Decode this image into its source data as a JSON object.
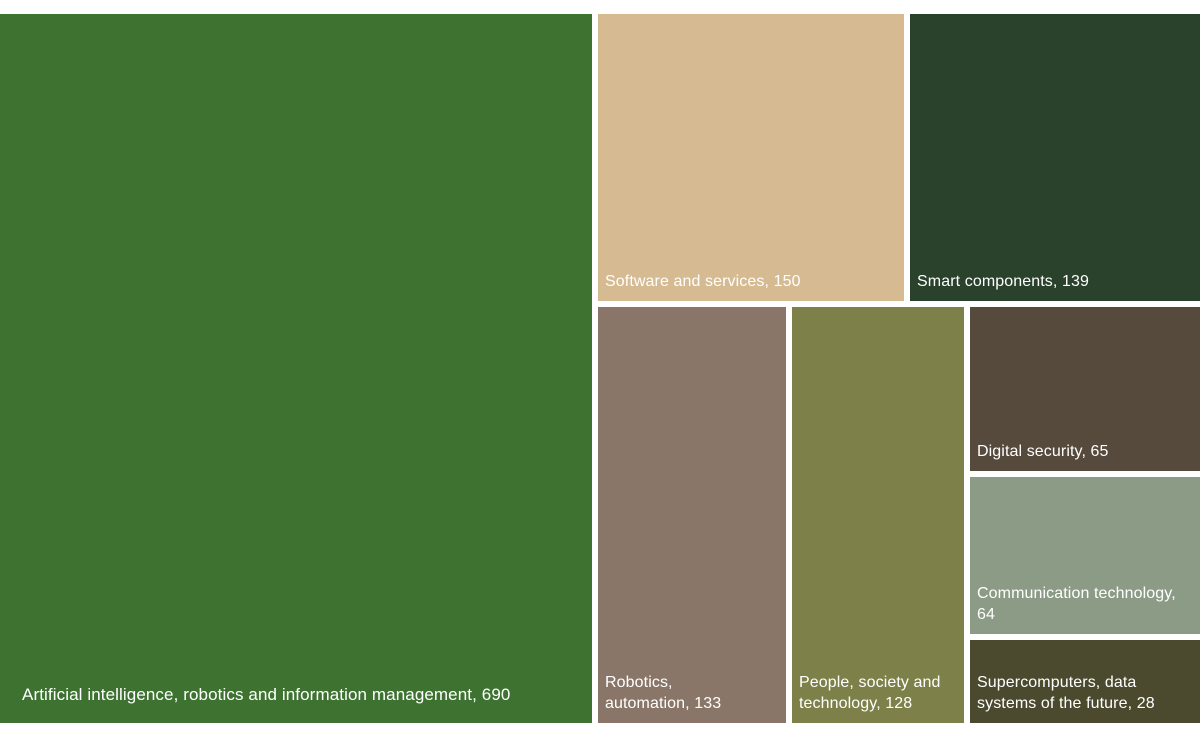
{
  "chart_data": {
    "type": "treemap",
    "title": "",
    "legend": "none",
    "items": [
      {
        "label": "Artificial intelligence, robotics and information management",
        "value": 690,
        "color": "#3d7230"
      },
      {
        "label": "Software and services",
        "value": 150,
        "color": "#d5ba92"
      },
      {
        "label": "Smart components",
        "value": 139,
        "color": "#2a412c"
      },
      {
        "label": "Robotics, automation",
        "value": 133,
        "color": "#8a7668"
      },
      {
        "label": "People, society and technology",
        "value": 128,
        "color": "#7d8048"
      },
      {
        "label": "Digital security",
        "value": 65,
        "color": "#564a3d"
      },
      {
        "label": "Communication technology",
        "value": 64,
        "color": "#8c9b86"
      },
      {
        "label": "Supercomputers, data systems of the future",
        "value": 28,
        "color": "#4b4a2e"
      }
    ],
    "label_text_color": "#ffffff",
    "background_color": "#ffffff"
  },
  "tiles": [
    {
      "label": "Artificial intelligence, robotics and information management, 690",
      "color": "#3d7230"
    },
    {
      "label": "Software and services, 150",
      "color": "#d5ba92"
    },
    {
      "label": "Smart components, 139",
      "color": "#2a412c"
    },
    {
      "label": "Robotics,\nautomation, 133",
      "color": "#8a7668"
    },
    {
      "label": "People, society and\ntechnology, 128",
      "color": "#7d8048"
    },
    {
      "label": "Digital security, 65",
      "color": "#564a3d"
    },
    {
      "label": "Communication technology,\n64",
      "color": "#8c9b86"
    },
    {
      "label": "Supercomputers, data\nsystems of the future, 28",
      "color": "#4b4a2e"
    }
  ]
}
